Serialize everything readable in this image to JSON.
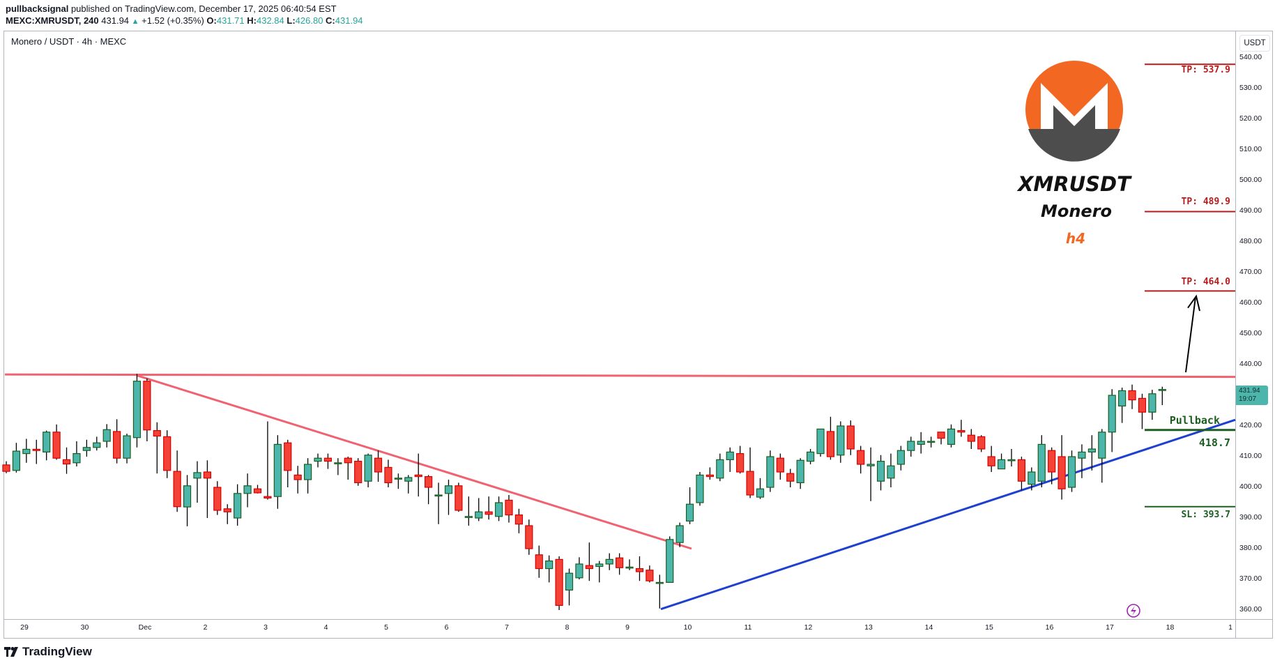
{
  "header": {
    "author": "pullbacksignal",
    "published_text": "published on TradingView.com, December 17, 2025 06:40:54 EST",
    "symbol": "MEXC:XMRUSDT, 240",
    "last": "431.94",
    "change": "+1.52 (+0.35%)",
    "o_label": "O:",
    "o": "431.71",
    "h_label": "H:",
    "h": "432.84",
    "l_label": "L:",
    "l": "426.80",
    "c_label": "C:",
    "c": "431.94"
  },
  "chart_title": "Monero / USDT · 4h · MEXC",
  "currency": "USDT",
  "price_tag": {
    "price": "431.94",
    "countdown": "19:07"
  },
  "annotations": {
    "ticker": "XMRUSDT",
    "name": "Monero",
    "timeframe": "h4",
    "tp3": "TP: 537.9",
    "tp2": "TP: 489.9",
    "tp1": "TP: 464.0",
    "pullback": "Pullback",
    "pullback_price": "418.7",
    "sl": "SL: 393.7"
  },
  "footer": {
    "brand": "TradingView"
  },
  "colors": {
    "up": "#4db6ac",
    "up_border": "#1b5e20",
    "down": "#f44336",
    "down_border": "#d50000",
    "resistance": "#f06270",
    "support": "#1e40d0",
    "tp": "#b71c1c",
    "sl": "#1b5e20",
    "monero_orange": "#f26822",
    "monero_gray": "#4d4d4d"
  },
  "chart_data": {
    "type": "candlestick",
    "title": "Monero / USDT · 4h · MEXC",
    "xlabel": "",
    "ylabel": "USDT",
    "ylim": [
      358,
      543
    ],
    "y_ticks": [
      "540.00",
      "530.00",
      "520.00",
      "510.00",
      "500.00",
      "490.00",
      "480.00",
      "470.00",
      "460.00",
      "450.00",
      "440.00",
      "430.00",
      "420.00",
      "410.00",
      "400.00",
      "390.00",
      "380.00",
      "370.00",
      "360.00"
    ],
    "x_ticks": [
      "29",
      "30",
      "Dec",
      "2",
      "3",
      "4",
      "5",
      "6",
      "7",
      "8",
      "9",
      "10",
      "11",
      "12",
      "13",
      "14",
      "15",
      "16",
      "17",
      "18",
      "1"
    ],
    "levels": [
      {
        "name": "TP3",
        "price": 537.9
      },
      {
        "name": "TP2",
        "price": 489.9
      },
      {
        "name": "TP1",
        "price": 464.0
      },
      {
        "name": "Pullback",
        "price": 418.7
      },
      {
        "name": "SL",
        "price": 393.7
      },
      {
        "name": "Resistance",
        "price": 436.2
      }
    ],
    "trendlines": [
      {
        "name": "descending resistance",
        "from": [
          "Nov 30 20:00",
          436.5
        ],
        "to": [
          "Dec 9 16:00",
          380
        ]
      },
      {
        "name": "ascending support",
        "from": [
          "Dec 9 12:00",
          360.5
        ],
        "to": [
          "Dec 18 20:00",
          422
        ]
      }
    ],
    "candles": [
      [
        407.3,
        405.2,
        408.5,
        404.6
      ],
      [
        405.5,
        411.8,
        414.5,
        404.8
      ],
      [
        411.0,
        412.4,
        415.8,
        408.0
      ],
      [
        412.4,
        412.0,
        415.5,
        407.6
      ],
      [
        411.5,
        418.0,
        418.5,
        408.8
      ],
      [
        418.0,
        409.5,
        420.5,
        409.0
      ],
      [
        409.0,
        407.6,
        413.0,
        404.4
      ],
      [
        408.0,
        411.0,
        415.0,
        406.8
      ],
      [
        412.0,
        413.0,
        415.5,
        410.0
      ],
      [
        413.0,
        414.5,
        416.5,
        412.0
      ],
      [
        415.0,
        418.8,
        420.6,
        413.0
      ],
      [
        418.2,
        409.5,
        422.2,
        407.8
      ],
      [
        409.5,
        416.8,
        417.5,
        407.8
      ],
      [
        416.2,
        434.6,
        437.0,
        413.0
      ],
      [
        434.6,
        418.7,
        435.5,
        415.0
      ],
      [
        418.5,
        416.7,
        421.2,
        404.5
      ],
      [
        416.5,
        405.5,
        418.6,
        403.0
      ],
      [
        405.2,
        393.7,
        412.0,
        392.0
      ],
      [
        393.6,
        400.5,
        404.0,
        387.3
      ],
      [
        403.0,
        404.8,
        408.5,
        395.0
      ],
      [
        405.0,
        403.0,
        408.8,
        390.0
      ],
      [
        400.0,
        392.5,
        402.0,
        391.0
      ],
      [
        393.0,
        392.0,
        394.5,
        388.0
      ],
      [
        390.0,
        398.0,
        401.0,
        387.5
      ],
      [
        398.0,
        400.5,
        404.5,
        393.5
      ],
      [
        399.5,
        398.2,
        400.8,
        398.0
      ],
      [
        397.0,
        396.5,
        421.5,
        396.0
      ],
      [
        397.0,
        414.0,
        417.0,
        393.0
      ],
      [
        414.5,
        405.5,
        415.5,
        400.0
      ],
      [
        404.0,
        402.5,
        407.0,
        398.0
      ],
      [
        402.5,
        407.5,
        409.5,
        398.0
      ],
      [
        408.5,
        409.5,
        411.0,
        406.5
      ],
      [
        409.5,
        408.5,
        411.0,
        406.0
      ],
      [
        408.0,
        408.0,
        409.5,
        404.0
      ],
      [
        409.5,
        408.0,
        410.0,
        402.5
      ],
      [
        408.5,
        401.5,
        409.5,
        400.5
      ],
      [
        402.0,
        410.5,
        411.0,
        400.0
      ],
      [
        409.5,
        405.0,
        412.0,
        401.8
      ],
      [
        406.5,
        401.5,
        409.0,
        400.0
      ],
      [
        403.0,
        403.0,
        404.5,
        399.5
      ],
      [
        402.0,
        403.2,
        404.0,
        398.0
      ],
      [
        404.0,
        403.5,
        411.0,
        397.0
      ],
      [
        403.5,
        400.0,
        404.0,
        394.5
      ],
      [
        397.5,
        397.5,
        401.5,
        388.0
      ],
      [
        398.0,
        400.5,
        402.5,
        391.0
      ],
      [
        400.5,
        392.5,
        401.5,
        392.0
      ],
      [
        390.5,
        390.5,
        397.0,
        387.5
      ],
      [
        390.0,
        392.0,
        396.5,
        389.0
      ],
      [
        392.0,
        391.2,
        397.0,
        389.5
      ],
      [
        390.5,
        395.0,
        397.0,
        389.0
      ],
      [
        395.8,
        391.0,
        397.5,
        388.5
      ],
      [
        391.0,
        388.0,
        393.0,
        385.0
      ],
      [
        387.5,
        380.0,
        389.5,
        378.0
      ],
      [
        378.0,
        373.5,
        381.0,
        370.5
      ],
      [
        373.5,
        376.0,
        377.8,
        369.0
      ],
      [
        376.5,
        361.5,
        377.5,
        360.0
      ],
      [
        366.5,
        372.0,
        373.5,
        361.5
      ],
      [
        370.5,
        375.0,
        377.2,
        370.0
      ],
      [
        374.5,
        373.5,
        382.0,
        369.5
      ],
      [
        374.2,
        375.0,
        376.0,
        369.0
      ],
      [
        375.0,
        376.5,
        378.5,
        373.0
      ],
      [
        377.0,
        373.8,
        378.5,
        371.5
      ],
      [
        374.0,
        374.0,
        376.5,
        373.0
      ],
      [
        373.5,
        372.5,
        377.5,
        369.5
      ],
      [
        373.0,
        369.5,
        374.5,
        369.0
      ],
      [
        369.0,
        369.0,
        371.5,
        360.5
      ],
      [
        369.0,
        383.0,
        384.0,
        369.0
      ],
      [
        382.0,
        387.5,
        388.5,
        380.5
      ],
      [
        389.0,
        394.5,
        400.0,
        388.0
      ],
      [
        395.0,
        404.0,
        405.0,
        394.0
      ],
      [
        404.0,
        403.5,
        406.5,
        402.5
      ],
      [
        403.0,
        409.0,
        411.0,
        402.0
      ],
      [
        409.0,
        411.5,
        413.0,
        405.0
      ],
      [
        411.0,
        405.0,
        413.5,
        404.5
      ],
      [
        405.2,
        397.5,
        413.0,
        396.5
      ],
      [
        396.8,
        399.5,
        403.0,
        396.2
      ],
      [
        400.0,
        410.0,
        412.0,
        398.5
      ],
      [
        409.5,
        405.0,
        411.0,
        402.5
      ],
      [
        404.5,
        402.0,
        406.0,
        400.0
      ],
      [
        401.5,
        408.8,
        409.5,
        399.5
      ],
      [
        408.5,
        411.5,
        412.5,
        407.5
      ],
      [
        411.0,
        419.0,
        419.0,
        410.0
      ],
      [
        418.2,
        410.0,
        423.0,
        409.0
      ],
      [
        410.5,
        420.0,
        421.5,
        408.0
      ],
      [
        420.0,
        412.5,
        421.8,
        410.5
      ],
      [
        412.0,
        407.5,
        413.5,
        404.5
      ],
      [
        407.0,
        407.5,
        413.0,
        395.5
      ],
      [
        402.0,
        408.5,
        410.5,
        399.0
      ],
      [
        403.0,
        407.0,
        411.0,
        400.0
      ],
      [
        407.5,
        412.0,
        413.5,
        405.5
      ],
      [
        412.0,
        415.0,
        416.5,
        410.0
      ],
      [
        414.0,
        415.0,
        418.0,
        411.0
      ],
      [
        415.0,
        415.0,
        416.5,
        413.0
      ],
      [
        418.0,
        416.0,
        416.0,
        414.0
      ],
      [
        414.0,
        419.0,
        420.5,
        413.0
      ],
      [
        418.5,
        418.0,
        422.0,
        416.5
      ],
      [
        417.0,
        415.0,
        419.0,
        412.5
      ],
      [
        416.5,
        412.5,
        417.0,
        411.5
      ],
      [
        410.0,
        407.0,
        413.5,
        405.0
      ],
      [
        406.0,
        409.0,
        411.0,
        406.0
      ],
      [
        409.0,
        409.0,
        412.5,
        406.8
      ],
      [
        409.0,
        402.0,
        410.0,
        399.0
      ],
      [
        401.0,
        405.0,
        406.5,
        399.0
      ],
      [
        402.0,
        414.0,
        417.0,
        400.0
      ],
      [
        412.0,
        405.0,
        413.0,
        401.0
      ],
      [
        410.0,
        399.5,
        417.0,
        396.0
      ],
      [
        400.0,
        410.0,
        412.0,
        398.5
      ],
      [
        409.5,
        411.5,
        414.0,
        403.0
      ],
      [
        411.5,
        412.5,
        417.0,
        405.5
      ],
      [
        409.5,
        418.0,
        419.0,
        401.5
      ],
      [
        418.0,
        430.0,
        432.0,
        411.5
      ],
      [
        426.5,
        431.5,
        432.5,
        421.0
      ],
      [
        431.5,
        428.5,
        433.5,
        425.5
      ],
      [
        429.0,
        424.5,
        430.5,
        419.0
      ],
      [
        424.5,
        430.5,
        431.8,
        422.0
      ],
      [
        431.7,
        431.9,
        432.8,
        426.8
      ]
    ]
  }
}
